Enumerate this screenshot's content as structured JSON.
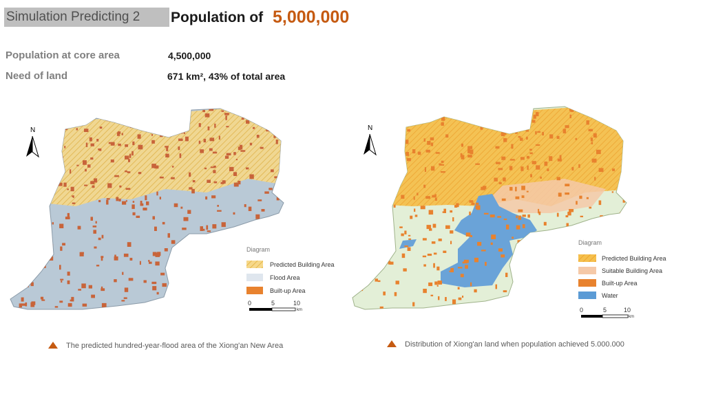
{
  "header": {
    "simulation_label": "Simulation Predicting 2",
    "title_prefix": "Population of",
    "title_number": "5,000,000"
  },
  "stats": [
    {
      "label": "Population  at core area",
      "value": "4,500,000"
    },
    {
      "label": "Need of land",
      "value": "671 km², 43% of total area"
    }
  ],
  "map_left": {
    "north": "N",
    "legend_title": "Diagram",
    "legend": [
      {
        "label": "Predicted Building Area",
        "color": "#f5d27a",
        "pattern": "hatch"
      },
      {
        "label": "Flood Area",
        "color": "#dfe6ee"
      },
      {
        "label": "Built-up Area",
        "color": "#e8822e"
      }
    ],
    "scale_labels": [
      "0",
      "5",
      "10",
      "km"
    ],
    "caption": "The predicted hundred-year-flood area of the Xiong'an  New Area"
  },
  "map_right": {
    "north": "N",
    "legend_title": "Diagram",
    "legend": [
      {
        "label": "Predicted Building Area",
        "color": "#f5d27a",
        "pattern": "hatch"
      },
      {
        "label": "Suitable Building Area",
        "color": "#f5c9a8"
      },
      {
        "label": "Built-up Area",
        "color": "#e8822e"
      },
      {
        "label": "Water",
        "color": "#5b9bd5"
      }
    ],
    "scale_labels": [
      "0",
      "5",
      "10",
      "km"
    ],
    "caption": "Distribution of Xiong'an  land when population achieved 5.000.000"
  },
  "colors": {
    "accent": "#c55a11",
    "flood": "#b9c9d6",
    "land": "#e3efd7",
    "water": "#6aa3d8",
    "built": "#c8643a",
    "building": "#f2b04a"
  }
}
